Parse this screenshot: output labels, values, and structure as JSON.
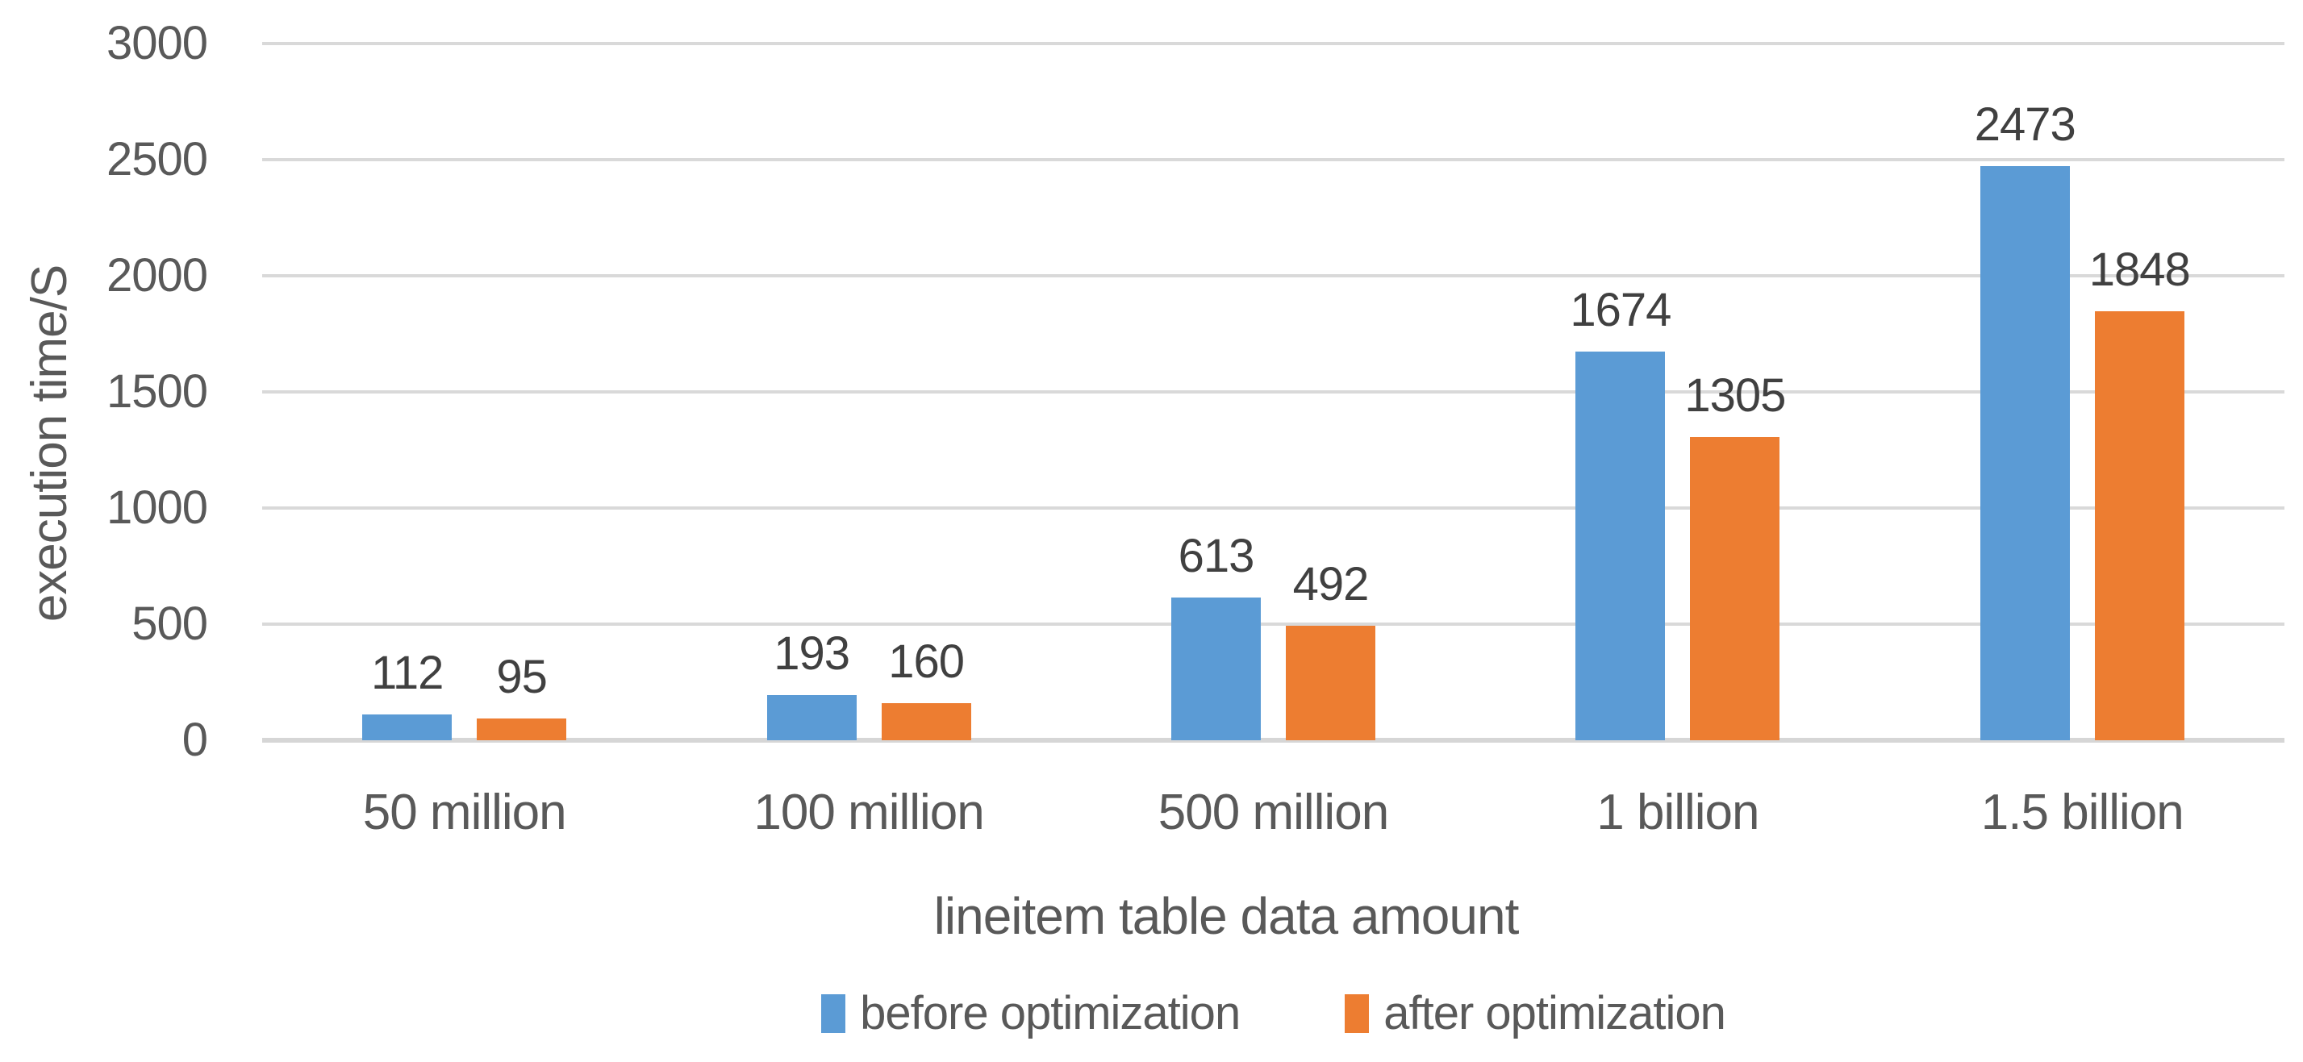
{
  "chart_data": {
    "type": "bar",
    "title": "",
    "categories": [
      "50 million",
      "100 million",
      "500 million",
      "1 billion",
      "1.5 billion"
    ],
    "series": [
      {
        "name": "before optimization",
        "color": "#5B9BD5",
        "values": [
          112,
          193,
          613,
          1674,
          2473
        ]
      },
      {
        "name": "after optimization",
        "color": "#ED7D31",
        "values": [
          95,
          160,
          492,
          1305,
          1848
        ]
      }
    ],
    "data_labels_shown": true,
    "xlabel": "lineitem table data amount",
    "ylabel": "execution time/S",
    "ylim": [
      0,
      3000
    ],
    "yticks": [
      0,
      500,
      1000,
      1500,
      2000,
      2500,
      3000
    ],
    "grid": "horizontal",
    "gridline_color": "#D9D9D9",
    "text_color": "#595959",
    "data_label_color": "#404040",
    "background_color": "#FFFFFF",
    "legend_position": "bottom"
  }
}
